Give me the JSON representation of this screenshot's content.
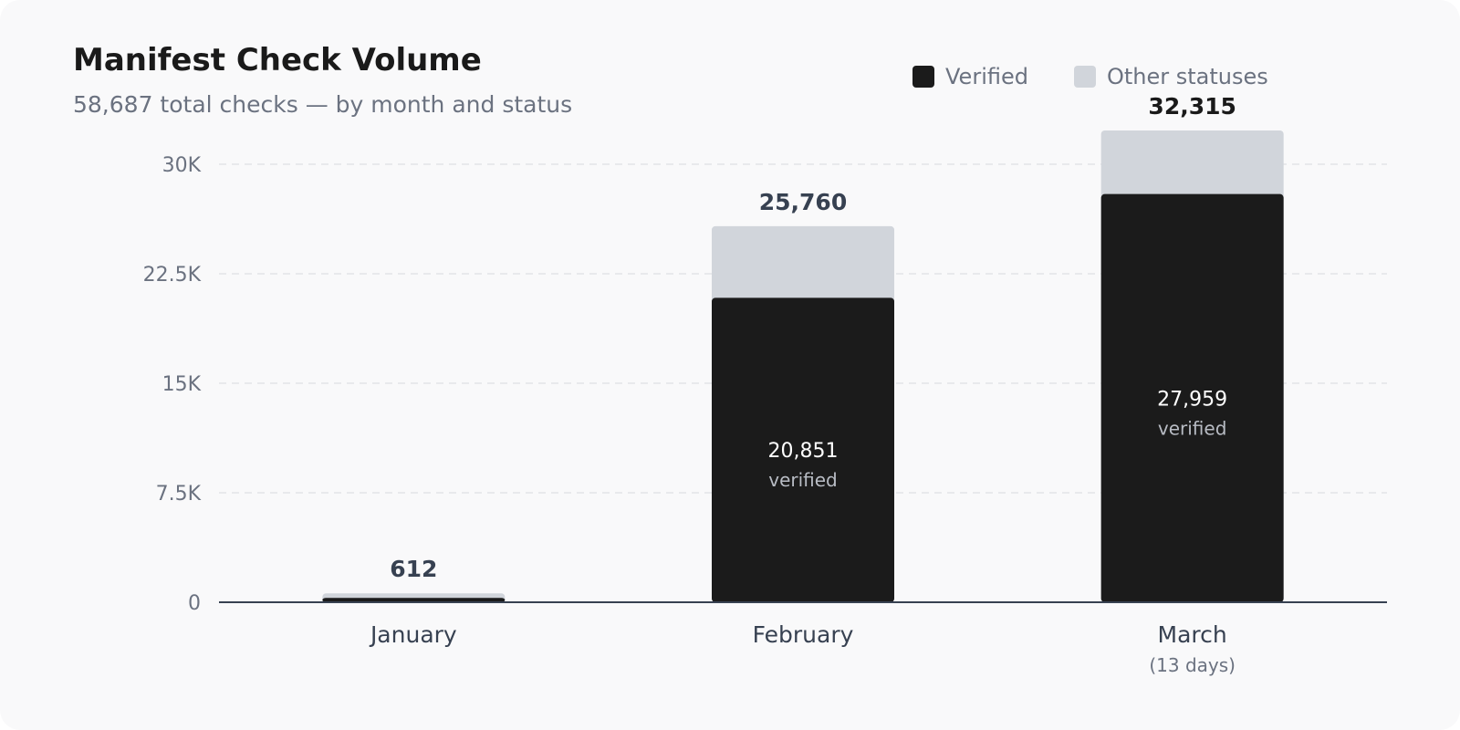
{
  "header": {
    "title": "Manifest Check Volume",
    "subtitle": "58,687 total checks — by month and status"
  },
  "legend": [
    {
      "label": "Verified",
      "color": "#1b1b1b"
    },
    {
      "label": "Other statuses",
      "color": "#d1d5db"
    }
  ],
  "chart_data": {
    "type": "bar",
    "stacked": true,
    "title": "Manifest Check Volume",
    "subtitle": "58,687 total checks — by month and status",
    "categories": [
      "January",
      "February",
      "March"
    ],
    "category_notes": [
      "",
      "",
      "(13 days)"
    ],
    "series": [
      {
        "name": "Verified",
        "values": [
          300,
          20851,
          27959
        ],
        "color": "#1b1b1b"
      },
      {
        "name": "Other statuses",
        "values": [
          312,
          4909,
          4356
        ],
        "color": "#d1d5db"
      }
    ],
    "totals": [
      "612",
      "25,760",
      "32,315"
    ],
    "inner_labels": [
      {
        "value": "",
        "note": ""
      },
      {
        "value": "20,851",
        "note": "verified"
      },
      {
        "value": "27,959",
        "note": "verified"
      }
    ],
    "yticks": [
      "0",
      "7.5K",
      "15K",
      "22.5K",
      "30K"
    ],
    "ytick_values": [
      0,
      7500,
      15000,
      22500,
      30000
    ],
    "ylim": [
      0,
      30000
    ],
    "grid": true,
    "legend_position": "top-right"
  }
}
